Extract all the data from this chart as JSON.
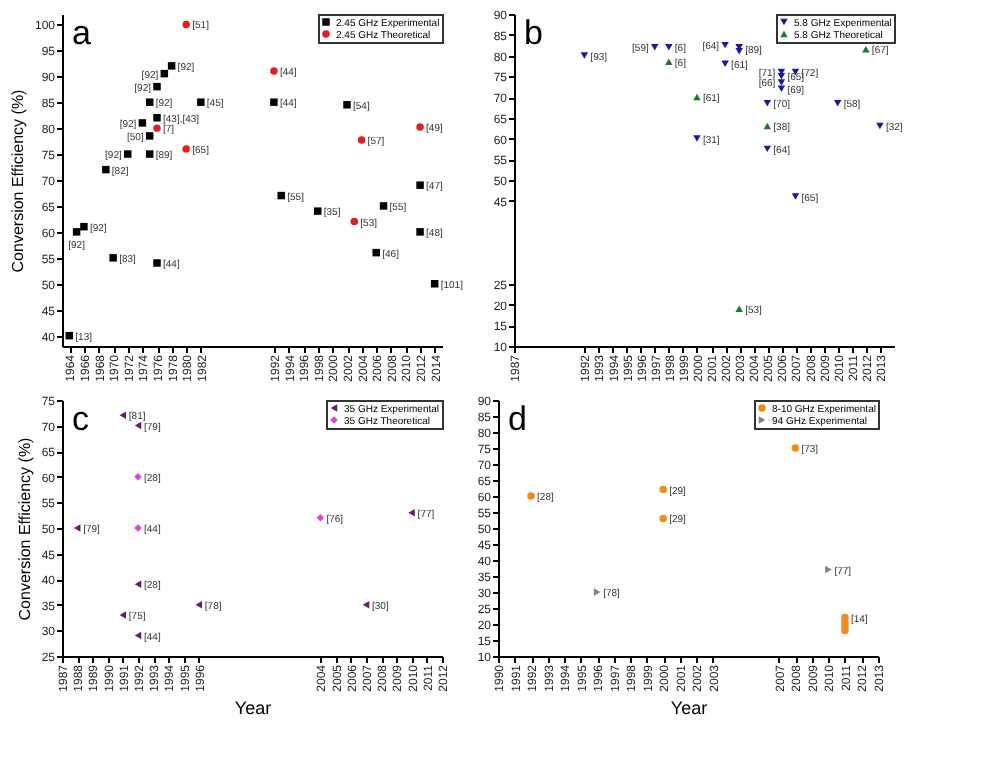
{
  "chart_data": [
    {
      "type": "scatter",
      "ylabel": "Conversion Efficiency (%)",
      "xlim": [
        1963,
        2015
      ],
      "ylim": [
        38,
        102
      ],
      "xticks": [
        1964,
        1966,
        1968,
        1970,
        1972,
        1974,
        1976,
        1978,
        1980,
        1982,
        1992,
        1994,
        1996,
        1998,
        2000,
        2002,
        2004,
        2006,
        2008,
        2010,
        2012,
        2014
      ],
      "yticks": [
        40,
        45,
        50,
        55,
        60,
        65,
        70,
        75,
        80,
        85,
        90,
        95,
        100
      ],
      "legend": "top right",
      "grid": false,
      "series": [
        {
          "name": "2.45 GHz Experimental",
          "color": "#000000",
          "marker": "square",
          "x": [
            1964,
            1965,
            1966,
            1969,
            1970,
            1972,
            1974,
            1975,
            1975,
            1975,
            1976,
            1976,
            1976,
            1977,
            1978,
            1982,
            1992,
            1993,
            1998,
            2002,
            2006,
            2007,
            2012,
            2012,
            2014
          ],
          "values": [
            40,
            60,
            61,
            72,
            55,
            75,
            81,
            85,
            78.5,
            75,
            88,
            82,
            54,
            90.5,
            92,
            85,
            85,
            67,
            64,
            84.5,
            56,
            65,
            69,
            60,
            50
          ]
        },
        {
          "name": "2.45 GHz Theoretical",
          "color": "#e02020",
          "marker": "circle",
          "x": [
            1980,
            1980,
            1976,
            1992,
            2003,
            2004,
            2012
          ],
          "values": [
            100,
            76,
            80,
            91,
            62,
            77.7,
            80.2
          ]
        }
      ],
      "annotations": [
        "a",
        {
          "text": "[13]",
          "x": 1964,
          "y": 40
        },
        {
          "text": "[92]",
          "x": 1965,
          "y": 60
        },
        {
          "text": "[92]",
          "x": 1966,
          "y": 61
        },
        {
          "text": "[82]",
          "x": 1969,
          "y": 72
        },
        {
          "text": "[83]",
          "x": 1970,
          "y": 55
        },
        {
          "text": "[92]",
          "x": 1972,
          "y": 75
        },
        {
          "text": "[92]",
          "x": 1974,
          "y": 81
        },
        {
          "text": "[92]",
          "x": 1975,
          "y": 85
        },
        {
          "text": "[50]",
          "x": 1975,
          "y": 78.5
        },
        {
          "text": "[89]",
          "x": 1975,
          "y": 75
        },
        {
          "text": "[92]",
          "x": 1976,
          "y": 88
        },
        {
          "text": "[43],[43]",
          "x": 1976,
          "y": 82
        },
        {
          "text": "[44]",
          "x": 1976,
          "y": 54
        },
        {
          "text": "[92]",
          "x": 1977,
          "y": 90.5
        },
        {
          "text": "[92]",
          "x": 1978,
          "y": 92
        },
        {
          "text": "[45]",
          "x": 1982,
          "y": 85
        },
        {
          "text": "[44]",
          "x": 1992,
          "y": 85
        },
        {
          "text": "[55]",
          "x": 1993,
          "y": 67
        },
        {
          "text": "[35]",
          "x": 1998,
          "y": 64
        },
        {
          "text": "[54]",
          "x": 2002,
          "y": 84.5
        },
        {
          "text": "[46]",
          "x": 2006,
          "y": 56
        },
        {
          "text": "[55]",
          "x": 2007,
          "y": 65
        },
        {
          "text": "[47]",
          "x": 2012,
          "y": 69
        },
        {
          "text": "[48]",
          "x": 2012,
          "y": 60
        },
        {
          "text": "[101]",
          "x": 2014,
          "y": 50
        },
        {
          "text": "[51]",
          "x": 1980,
          "y": 100
        },
        {
          "text": "[65]",
          "x": 1980,
          "y": 76
        },
        {
          "text": "[7]",
          "x": 1976,
          "y": 80
        },
        {
          "text": "[44]",
          "x": 1992,
          "y": 91
        },
        {
          "text": "[53]",
          "x": 2003,
          "y": 62
        },
        {
          "text": "[57]",
          "x": 2004,
          "y": 77.7
        },
        {
          "text": "[49]",
          "x": 2012,
          "y": 80.2
        }
      ]
    },
    {
      "type": "scatter",
      "xlim": [
        1987,
        2014
      ],
      "ylim": [
        10,
        90
      ],
      "xticks": [
        1987,
        1992,
        1993,
        1994,
        1995,
        1996,
        1997,
        1998,
        1999,
        2000,
        2001,
        2002,
        2003,
        2004,
        2005,
        2006,
        2007,
        2008,
        2009,
        2010,
        2011,
        2012,
        2013
      ],
      "yticks": [
        10,
        15,
        20,
        25,
        45,
        50,
        55,
        60,
        65,
        70,
        75,
        80,
        85,
        90
      ],
      "legend": "top right",
      "grid": false,
      "series": [
        {
          "name": "5.8 GHz Experimental",
          "color": "#1a1aa0",
          "marker": "triangle-down",
          "x": [
            1992,
            1997,
            1998,
            2000,
            2002,
            2002,
            2003,
            2003,
            2005,
            2005,
            2006,
            2006,
            2006,
            2006,
            2007,
            2007,
            2010,
            2013
          ],
          "values": [
            80,
            82,
            82,
            60,
            82.5,
            78,
            82,
            81,
            68.5,
            57.5,
            76,
            75,
            73.5,
            72,
            76,
            46,
            68.5,
            63
          ]
        },
        {
          "name": "5.8 GHz Theoretical",
          "color": "#1e7a2e",
          "marker": "triangle-up",
          "x": [
            1998,
            2000,
            2003,
            2005,
            2012
          ],
          "values": [
            78.5,
            70,
            19,
            63,
            81.5
          ]
        }
      ],
      "annotations": [
        "b",
        {
          "text": "[93]",
          "x": 1992,
          "y": 80
        },
        {
          "text": "[59]",
          "x": 1997,
          "y": 82
        },
        {
          "text": "[6]",
          "x": 1998,
          "y": 82
        },
        {
          "text": "[31]",
          "x": 2000,
          "y": 60
        },
        {
          "text": "[64]",
          "x": 2002,
          "y": 82.5
        },
        {
          "text": "[61]",
          "x": 2002,
          "y": 78
        },
        {
          "text": "[89]",
          "x": 2003,
          "y": 81.5
        },
        {
          "text": "[70]",
          "x": 2005,
          "y": 68.5
        },
        {
          "text": "[64]",
          "x": 2005,
          "y": 57.5
        },
        {
          "text": "[71]",
          "x": 2006,
          "y": 76
        },
        {
          "text": "[65]",
          "x": 2006,
          "y": 75
        },
        {
          "text": "[66]",
          "x": 2006,
          "y": 73.5
        },
        {
          "text": "[69]",
          "x": 2006,
          "y": 72
        },
        {
          "text": "[72]",
          "x": 2007,
          "y": 76
        },
        {
          "text": "[65]",
          "x": 2007,
          "y": 46
        },
        {
          "text": "[58]",
          "x": 2010,
          "y": 68.5
        },
        {
          "text": "[32]",
          "x": 2013,
          "y": 63
        },
        {
          "text": "[6]",
          "x": 1998,
          "y": 78.5
        },
        {
          "text": "[61]",
          "x": 2000,
          "y": 70
        },
        {
          "text": "[53]",
          "x": 2003,
          "y": 19
        },
        {
          "text": "[38]",
          "x": 2005,
          "y": 63
        },
        {
          "text": "[67]",
          "x": 2012,
          "y": 81.5
        }
      ]
    },
    {
      "type": "scatter",
      "xlabel": "Year",
      "ylabel": "Conversion Efficiency (%)",
      "xlim": [
        1987,
        2012
      ],
      "ylim": [
        25,
        75
      ],
      "xticks": [
        1987,
        1988,
        1989,
        1990,
        1991,
        1992,
        1993,
        1994,
        1995,
        1996,
        2004,
        2005,
        2006,
        2007,
        2008,
        2009,
        2010,
        2011,
        2012
      ],
      "yticks": [
        25,
        30,
        35,
        40,
        45,
        50,
        55,
        60,
        65,
        70,
        75
      ],
      "legend": "top right",
      "grid": false,
      "series": [
        {
          "name": "35 GHz Experimental",
          "color": "#6a1a6a",
          "marker": "triangle-left",
          "x": [
            1988,
            1991,
            1991,
            1992,
            1992,
            1992,
            1996,
            2007,
            2010
          ],
          "values": [
            50,
            72,
            33,
            70,
            39,
            29,
            35,
            35,
            53
          ]
        },
        {
          "name": "35 GHz Theoretical",
          "color": "#e040e0",
          "marker": "diamond",
          "x": [
            1992,
            1992,
            2004
          ],
          "values": [
            60,
            50,
            52
          ]
        }
      ],
      "annotations": [
        "c",
        {
          "text": "[79]",
          "x": 1988,
          "y": 50
        },
        {
          "text": "[81]",
          "x": 1991,
          "y": 72
        },
        {
          "text": "[75]",
          "x": 1991,
          "y": 33
        },
        {
          "text": "[79]",
          "x": 1992,
          "y": 70
        },
        {
          "text": "[28]",
          "x": 1992,
          "y": 39
        },
        {
          "text": "[44]",
          "x": 1992,
          "y": 29
        },
        {
          "text": "[78]",
          "x": 1996,
          "y": 35
        },
        {
          "text": "[30]",
          "x": 2007,
          "y": 35
        },
        {
          "text": "[77]",
          "x": 2010,
          "y": 53
        },
        {
          "text": "[28]",
          "x": 1992,
          "y": 60
        },
        {
          "text": "[44]",
          "x": 1992,
          "y": 50
        },
        {
          "text": "[76]",
          "x": 2004,
          "y": 52
        }
      ]
    },
    {
      "type": "scatter",
      "xlabel": "Year",
      "xlim": [
        1990,
        2013
      ],
      "ylim": [
        10,
        90
      ],
      "xticks": [
        1990,
        1991,
        1992,
        1993,
        1994,
        1995,
        1996,
        1997,
        1998,
        1999,
        2000,
        2001,
        2002,
        2003,
        2007,
        2008,
        2009,
        2010,
        2011,
        2012,
        2013
      ],
      "yticks": [
        10,
        15,
        20,
        25,
        30,
        35,
        40,
        45,
        50,
        55,
        60,
        65,
        70,
        75,
        80,
        85,
        90
      ],
      "legend": "top right",
      "grid": false,
      "series": [
        {
          "name": "8-10 GHz Experimental",
          "color": "#f08c1e",
          "marker": "circle",
          "x": [
            1992,
            2000,
            2000,
            2008,
            2011,
            2011,
            2011,
            2011,
            2011
          ],
          "values": [
            60,
            62,
            53,
            75,
            18,
            19,
            20,
            21,
            22
          ]
        },
        {
          "name": "94 GHz Experimental",
          "color": "#808080",
          "marker": "triangle-right",
          "x": [
            1996,
            2010
          ],
          "values": [
            30,
            37
          ]
        }
      ],
      "annotations": [
        "d",
        {
          "text": "[28]",
          "x": 1992,
          "y": 60
        },
        {
          "text": "[29]",
          "x": 2000,
          "y": 62
        },
        {
          "text": "[29]",
          "x": 2000,
          "y": 53
        },
        {
          "text": "[73]",
          "x": 2008,
          "y": 75
        },
        {
          "text": "[14]",
          "x": 2011,
          "y": 22
        },
        {
          "text": "[78]",
          "x": 1996,
          "y": 30
        },
        {
          "text": "[77]",
          "x": 2010,
          "y": 37
        }
      ]
    }
  ]
}
